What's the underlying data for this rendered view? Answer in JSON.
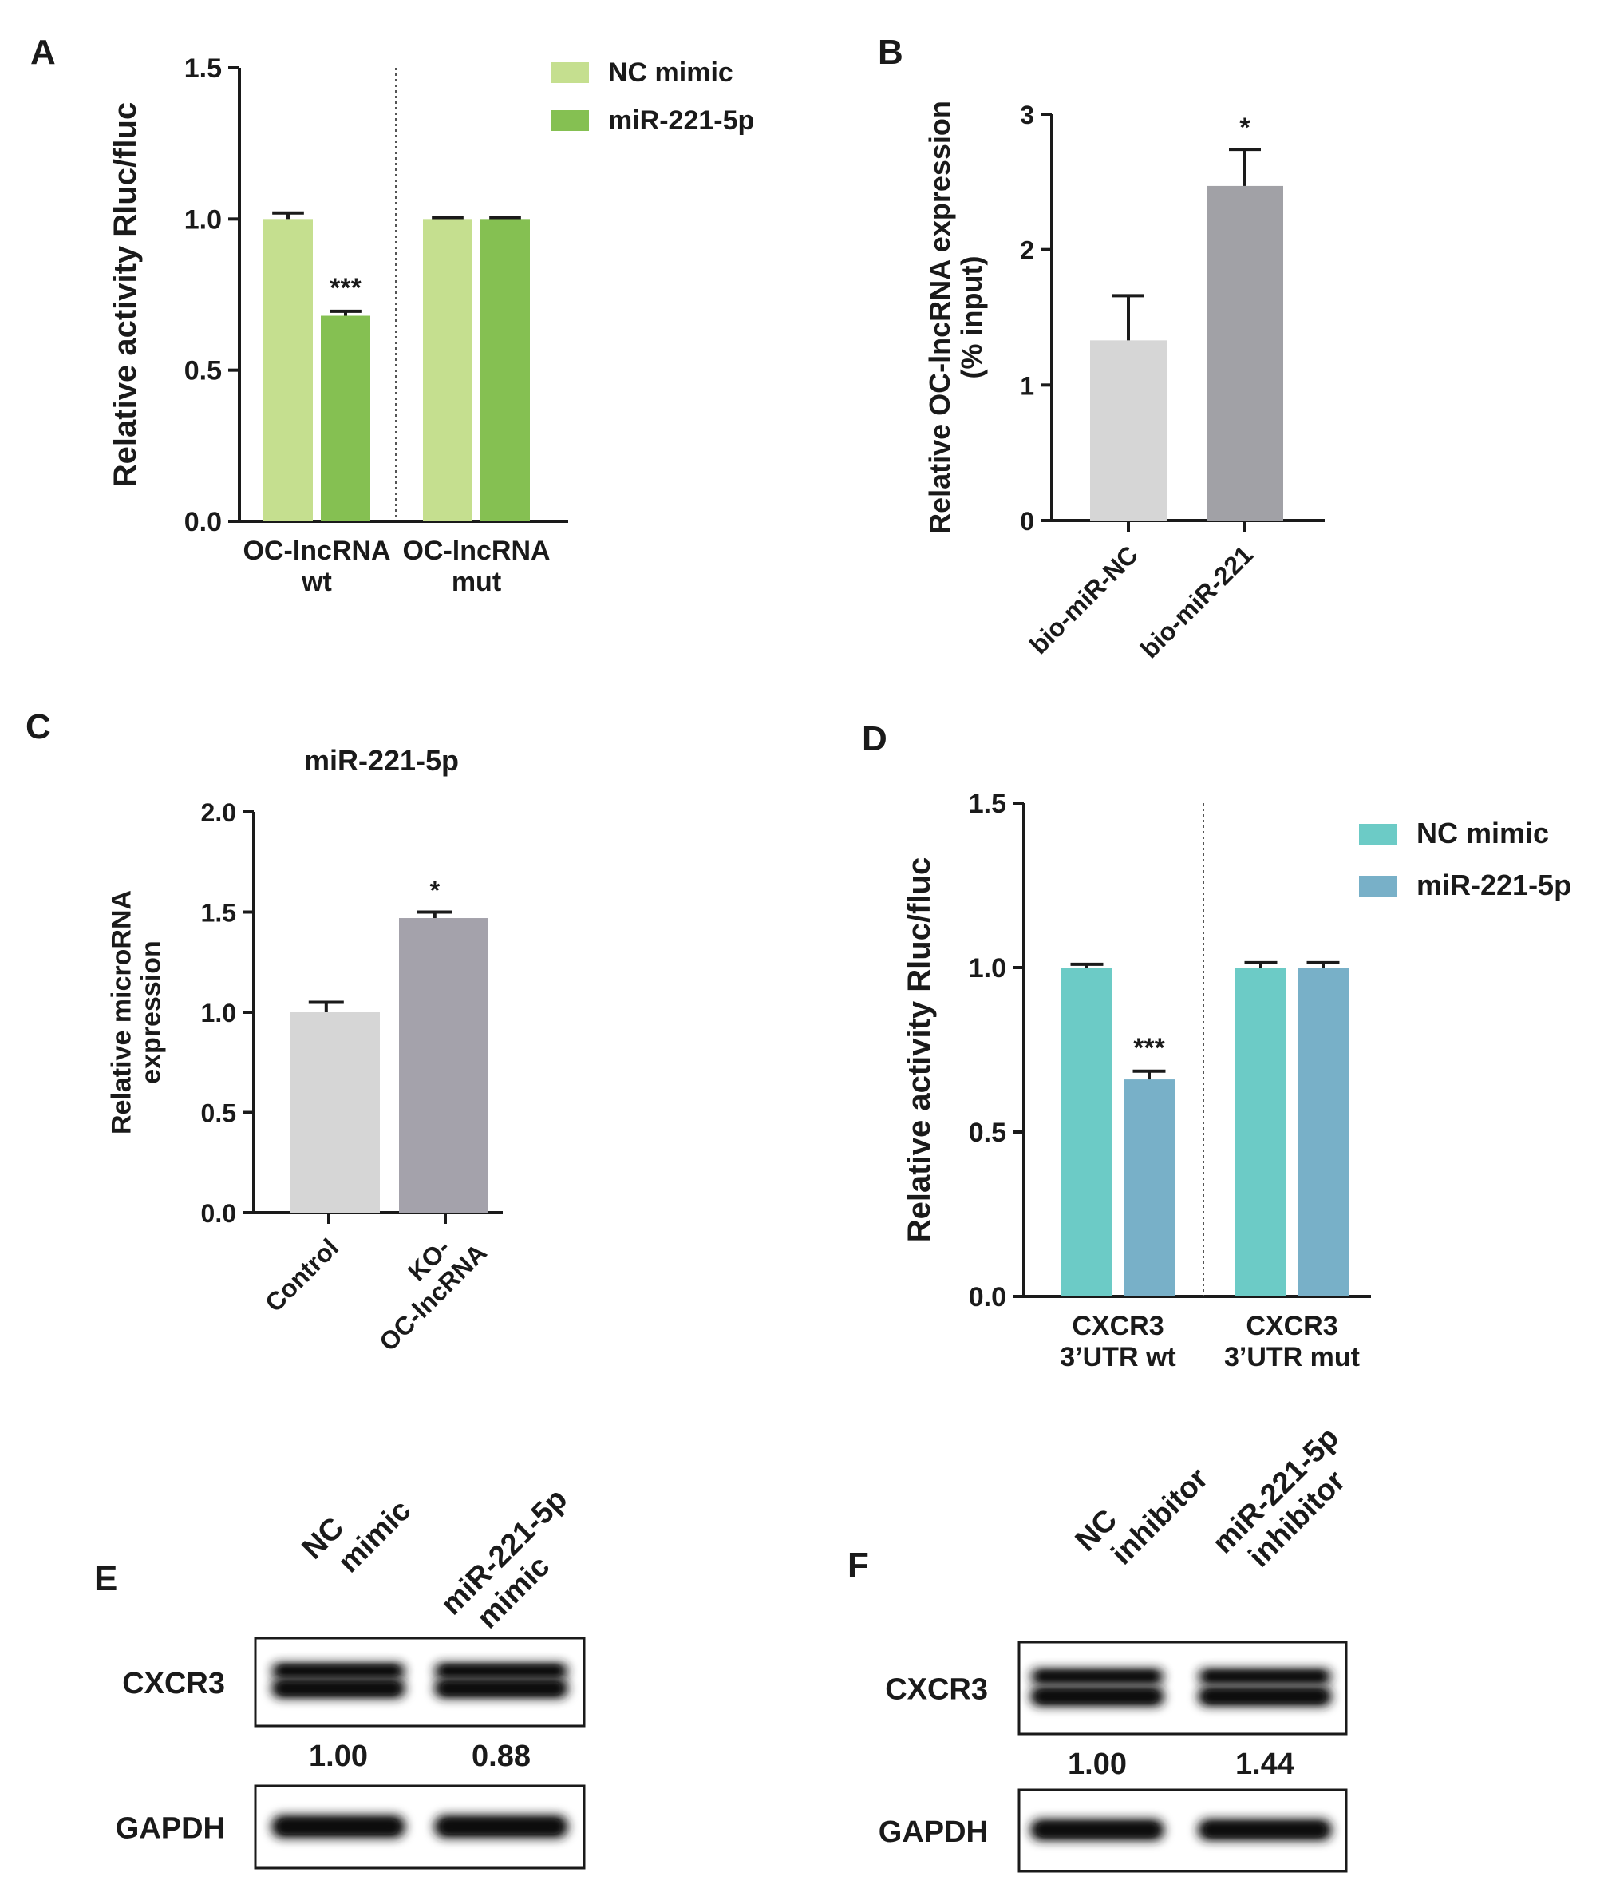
{
  "panels": {
    "A": {
      "letter": "A"
    },
    "B": {
      "letter": "B"
    },
    "C": {
      "letter": "C"
    },
    "D": {
      "letter": "D"
    },
    "E": {
      "letter": "E"
    },
    "F": {
      "letter": "F"
    }
  },
  "chart_data": [
    {
      "panel": "A",
      "type": "bar",
      "title": "",
      "xlabel": "",
      "ylabel": "Relative activity Rluc/fluc",
      "ylim": [
        0,
        1.5
      ],
      "yticks": [
        "0.0",
        "0.5",
        "1.0",
        "1.5"
      ],
      "ytick_values": [
        0,
        0.5,
        1.0,
        1.5
      ],
      "group_labels": [
        [
          "OC-lncRNA",
          "wt"
        ],
        [
          "OC-lncRNA",
          "mut"
        ]
      ],
      "group_divider": "dotted",
      "legend_placement": "top-right",
      "series": [
        {
          "name": "NC mimic",
          "color": "#c5df8f",
          "values": [
            1.0,
            1.0
          ],
          "errors": [
            0.02,
            0.005
          ]
        },
        {
          "name": "miR-221-5p",
          "color": "#85c052",
          "values": [
            0.68,
            1.0
          ],
          "errors": [
            0.015,
            0.005
          ]
        }
      ],
      "annotations": [
        {
          "text": "***",
          "group": 0,
          "series": 1
        }
      ]
    },
    {
      "panel": "B",
      "type": "bar",
      "title": "",
      "xlabel": "",
      "ylabel": [
        "Relative OC-lncRNA expression",
        "(% input)"
      ],
      "ylim": [
        0,
        3
      ],
      "yticks": [
        "0",
        "1",
        "2",
        "3"
      ],
      "ytick_values": [
        0,
        1,
        2,
        3
      ],
      "categories": [
        "bio-miR-NC",
        "bio-miR-221"
      ],
      "values": [
        1.33,
        2.47
      ],
      "errors": [
        0.33,
        0.27
      ],
      "colors": [
        "#d6d6d6",
        "#a1a1a6"
      ],
      "annotations": [
        {
          "text": "*",
          "index": 1
        }
      ]
    },
    {
      "panel": "C",
      "type": "bar",
      "title": "miR-221-5p",
      "xlabel": "",
      "ylabel": [
        "Relative microRNA",
        "expression"
      ],
      "ylim": [
        0,
        2.0
      ],
      "yticks": [
        "0.0",
        "0.5",
        "1.0",
        "1.5",
        "2.0"
      ],
      "ytick_values": [
        0,
        0.5,
        1.0,
        1.5,
        2.0
      ],
      "categories": [
        [
          "Control"
        ],
        [
          "KO-",
          "OC-lncRNA"
        ]
      ],
      "values": [
        1.0,
        1.47
      ],
      "errors": [
        0.05,
        0.03
      ],
      "colors": [
        "#d6d6d6",
        "#a4a2ab"
      ],
      "annotations": [
        {
          "text": "*",
          "index": 1
        }
      ]
    },
    {
      "panel": "D",
      "type": "bar",
      "title": "",
      "xlabel": "",
      "ylabel": "Relative activity Rluc/fluc",
      "ylim": [
        0,
        1.5
      ],
      "yticks": [
        "0.0",
        "0.5",
        "1.0",
        "1.5"
      ],
      "ytick_values": [
        0,
        0.5,
        1.0,
        1.5
      ],
      "group_labels": [
        [
          "CXCR3",
          "3’UTR wt"
        ],
        [
          "CXCR3",
          "3’UTR mut"
        ]
      ],
      "group_divider": "dotted",
      "legend_placement": "top-right",
      "series": [
        {
          "name": "NC mimic",
          "color": "#6ccbc6",
          "values": [
            1.0,
            1.0
          ],
          "errors": [
            0.01,
            0.015
          ]
        },
        {
          "name": "miR-221-5p",
          "color": "#78b0c8",
          "values": [
            0.66,
            1.0
          ],
          "errors": [
            0.025,
            0.015
          ]
        }
      ],
      "annotations": [
        {
          "text": "***",
          "group": 0,
          "series": 1
        }
      ]
    }
  ],
  "blots": [
    {
      "panel": "E",
      "lanes": [
        [
          "NC",
          "mimic"
        ],
        [
          "miR-221-5p",
          "mimic"
        ]
      ],
      "rows": [
        {
          "label": "CXCR3",
          "quant": [
            "1.00",
            "0.88"
          ]
        },
        {
          "label": "GAPDH"
        }
      ]
    },
    {
      "panel": "F",
      "lanes": [
        [
          "NC",
          "inhibitor"
        ],
        [
          "miR-221-5p",
          "inhibitor"
        ]
      ],
      "rows": [
        {
          "label": "CXCR3",
          "quant": [
            "1.00",
            "1.44"
          ]
        },
        {
          "label": "GAPDH"
        }
      ]
    }
  ]
}
